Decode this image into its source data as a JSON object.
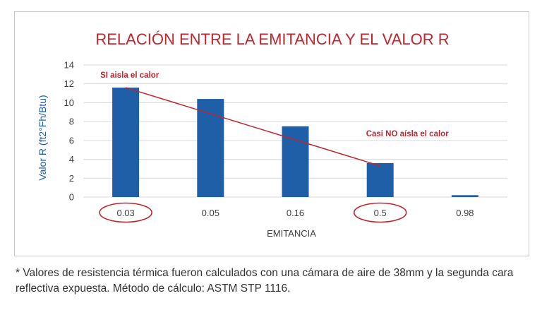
{
  "chart_data": {
    "type": "bar",
    "title": "RELACIÓN ENTRE LA EMITANCIA Y EL VALOR R",
    "xlabel": "EMITANCIA",
    "ylabel": "Valor R (ft2°Fh/Btu)",
    "categories": [
      "0.03",
      "0.05",
      "0.16",
      "0.5",
      "0.98"
    ],
    "values": [
      11.6,
      10.4,
      7.5,
      3.6,
      0.2
    ],
    "ylim": [
      0,
      14
    ],
    "yticks": [
      0,
      2,
      4,
      6,
      8,
      10,
      12,
      14
    ],
    "grid": true,
    "circled_categories": [
      "0.03",
      "0.5"
    ],
    "trend_line": {
      "from_category": "0.03",
      "from_value": 11.6,
      "to_category": "0.5",
      "to_value": 3.3
    },
    "annotations": [
      {
        "text": "SI aisla el calor",
        "category": "0.03"
      },
      {
        "text": "Casi NO aísla el calor",
        "category": "0.5"
      }
    ],
    "colors": {
      "bar": "#1f5fa8",
      "accent": "#c0262d",
      "title": "#c0262d",
      "ylabel": "#1f5fa8",
      "grid": "#d9d9d9"
    }
  },
  "footnote": "* Valores de resistencia térmica fueron calculados con una cámara de aire de 38mm y la segunda cara reflectiva expuesta. Método de cálculo: ASTM STP 1116."
}
